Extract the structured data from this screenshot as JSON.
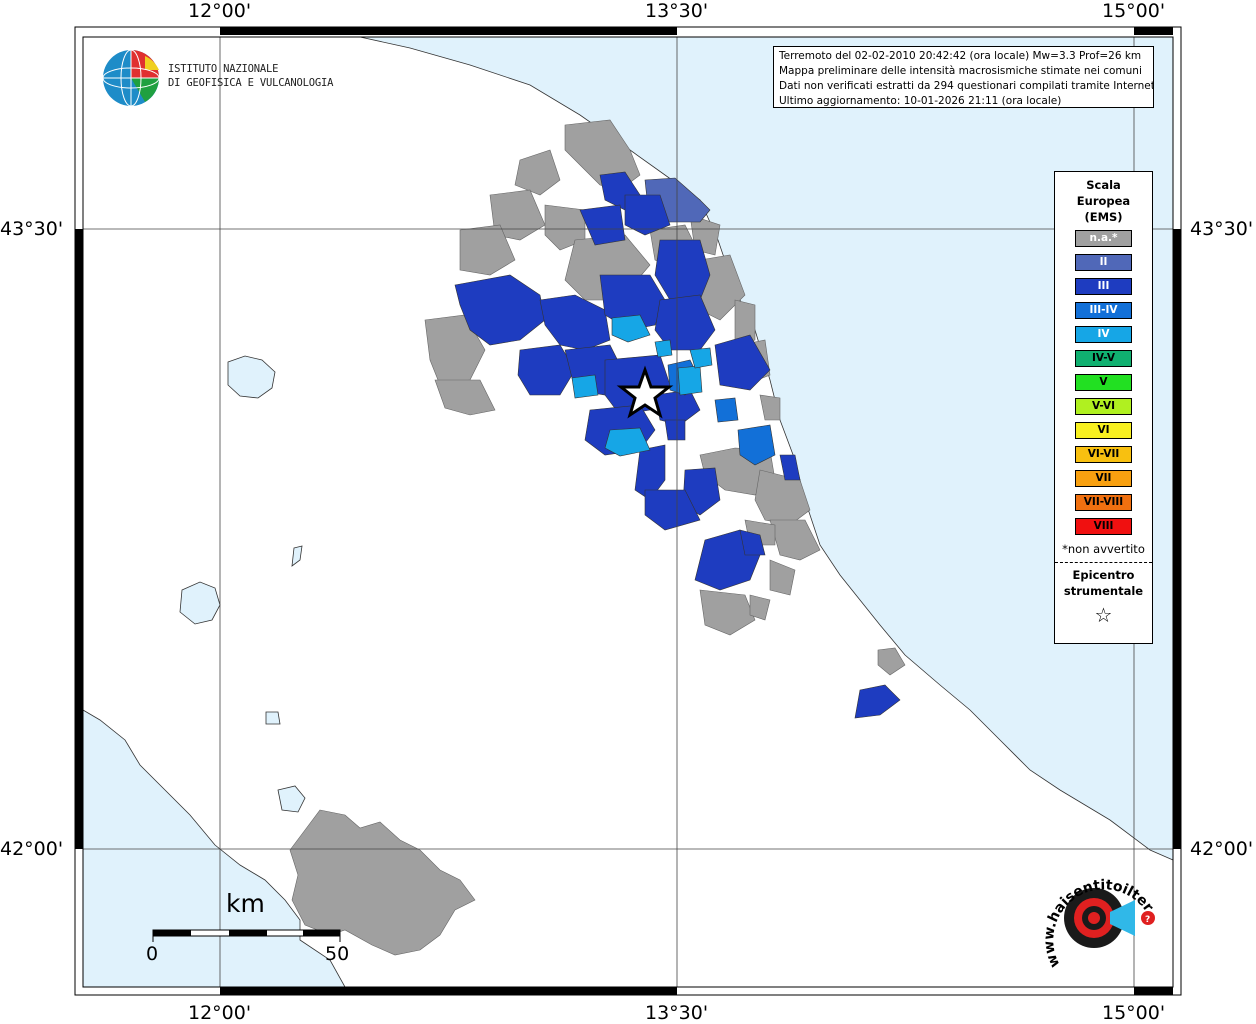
{
  "info": {
    "line1": "Terremoto del 02-02-2010 20:42:42 (ora locale) Mw=3.3 Prof=26 km",
    "line2": "Mappa preliminare delle intensità macrosismiche stimate nei comuni",
    "line3": "Dati non verificati estratti da 294 questionari compilati tramite Internet.",
    "line4": "Ultimo aggiornamento: 10-01-2026 21:11 (ora locale)"
  },
  "logo": {
    "line1": "ISTITUTO NAZIONALE",
    "line2": "DI GEOFISICA E VULCANOLOGIA"
  },
  "axes": {
    "lon_top": [
      "12°00'",
      "13°30'",
      "15°00'"
    ],
    "lon_bottom": [
      "12°00'",
      "13°30'",
      "15°00'"
    ],
    "lat_left": [
      "43°30'",
      "42°00'"
    ],
    "lat_right": [
      "43°30'",
      "42°00'"
    ]
  },
  "legend": {
    "title_line1": "Scala",
    "title_line2": "Europea",
    "title_line3": "(EMS)",
    "items": [
      {
        "label": "n.a.*",
        "color": "#a0a0a0",
        "text_color": "#ffffff"
      },
      {
        "label": "II",
        "color": "#5068b8",
        "text_color": "#ffffff"
      },
      {
        "label": "III",
        "color": "#1e3cc0",
        "text_color": "#ffffff"
      },
      {
        "label": "III-IV",
        "color": "#1270d8",
        "text_color": "#ffffff"
      },
      {
        "label": "IV",
        "color": "#16a6e6",
        "text_color": "#ffffff"
      },
      {
        "label": "IV-V",
        "color": "#10b070",
        "text_color": "#000000"
      },
      {
        "label": "V",
        "color": "#22e022",
        "text_color": "#000000"
      },
      {
        "label": "V-VI",
        "color": "#b0f020",
        "text_color": "#000000"
      },
      {
        "label": "VI",
        "color": "#f8f020",
        "text_color": "#000000"
      },
      {
        "label": "VI-VII",
        "color": "#f8c010",
        "text_color": "#000000"
      },
      {
        "label": "VII",
        "color": "#f8a010",
        "text_color": "#000000"
      },
      {
        "label": "VII-VIII",
        "color": "#f07010",
        "text_color": "#000000"
      },
      {
        "label": "VIII",
        "color": "#f01010",
        "text_color": "#000000"
      }
    ],
    "note": "*non avvertito",
    "epicenter_line1": "Epicentro",
    "epicenter_line2": "strumentale"
  },
  "scale": {
    "unit": "km",
    "min": "0",
    "max": "50"
  },
  "watermark": "www.haisentitoilterremoto.it",
  "colors": {
    "sea": "#e0f2fc",
    "land": "#ffffff",
    "na": "#a0a0a0",
    "ii": "#5068b8",
    "iii": "#1e3cc0",
    "iii_iv": "#1270d8",
    "iv": "#16a6e6"
  }
}
